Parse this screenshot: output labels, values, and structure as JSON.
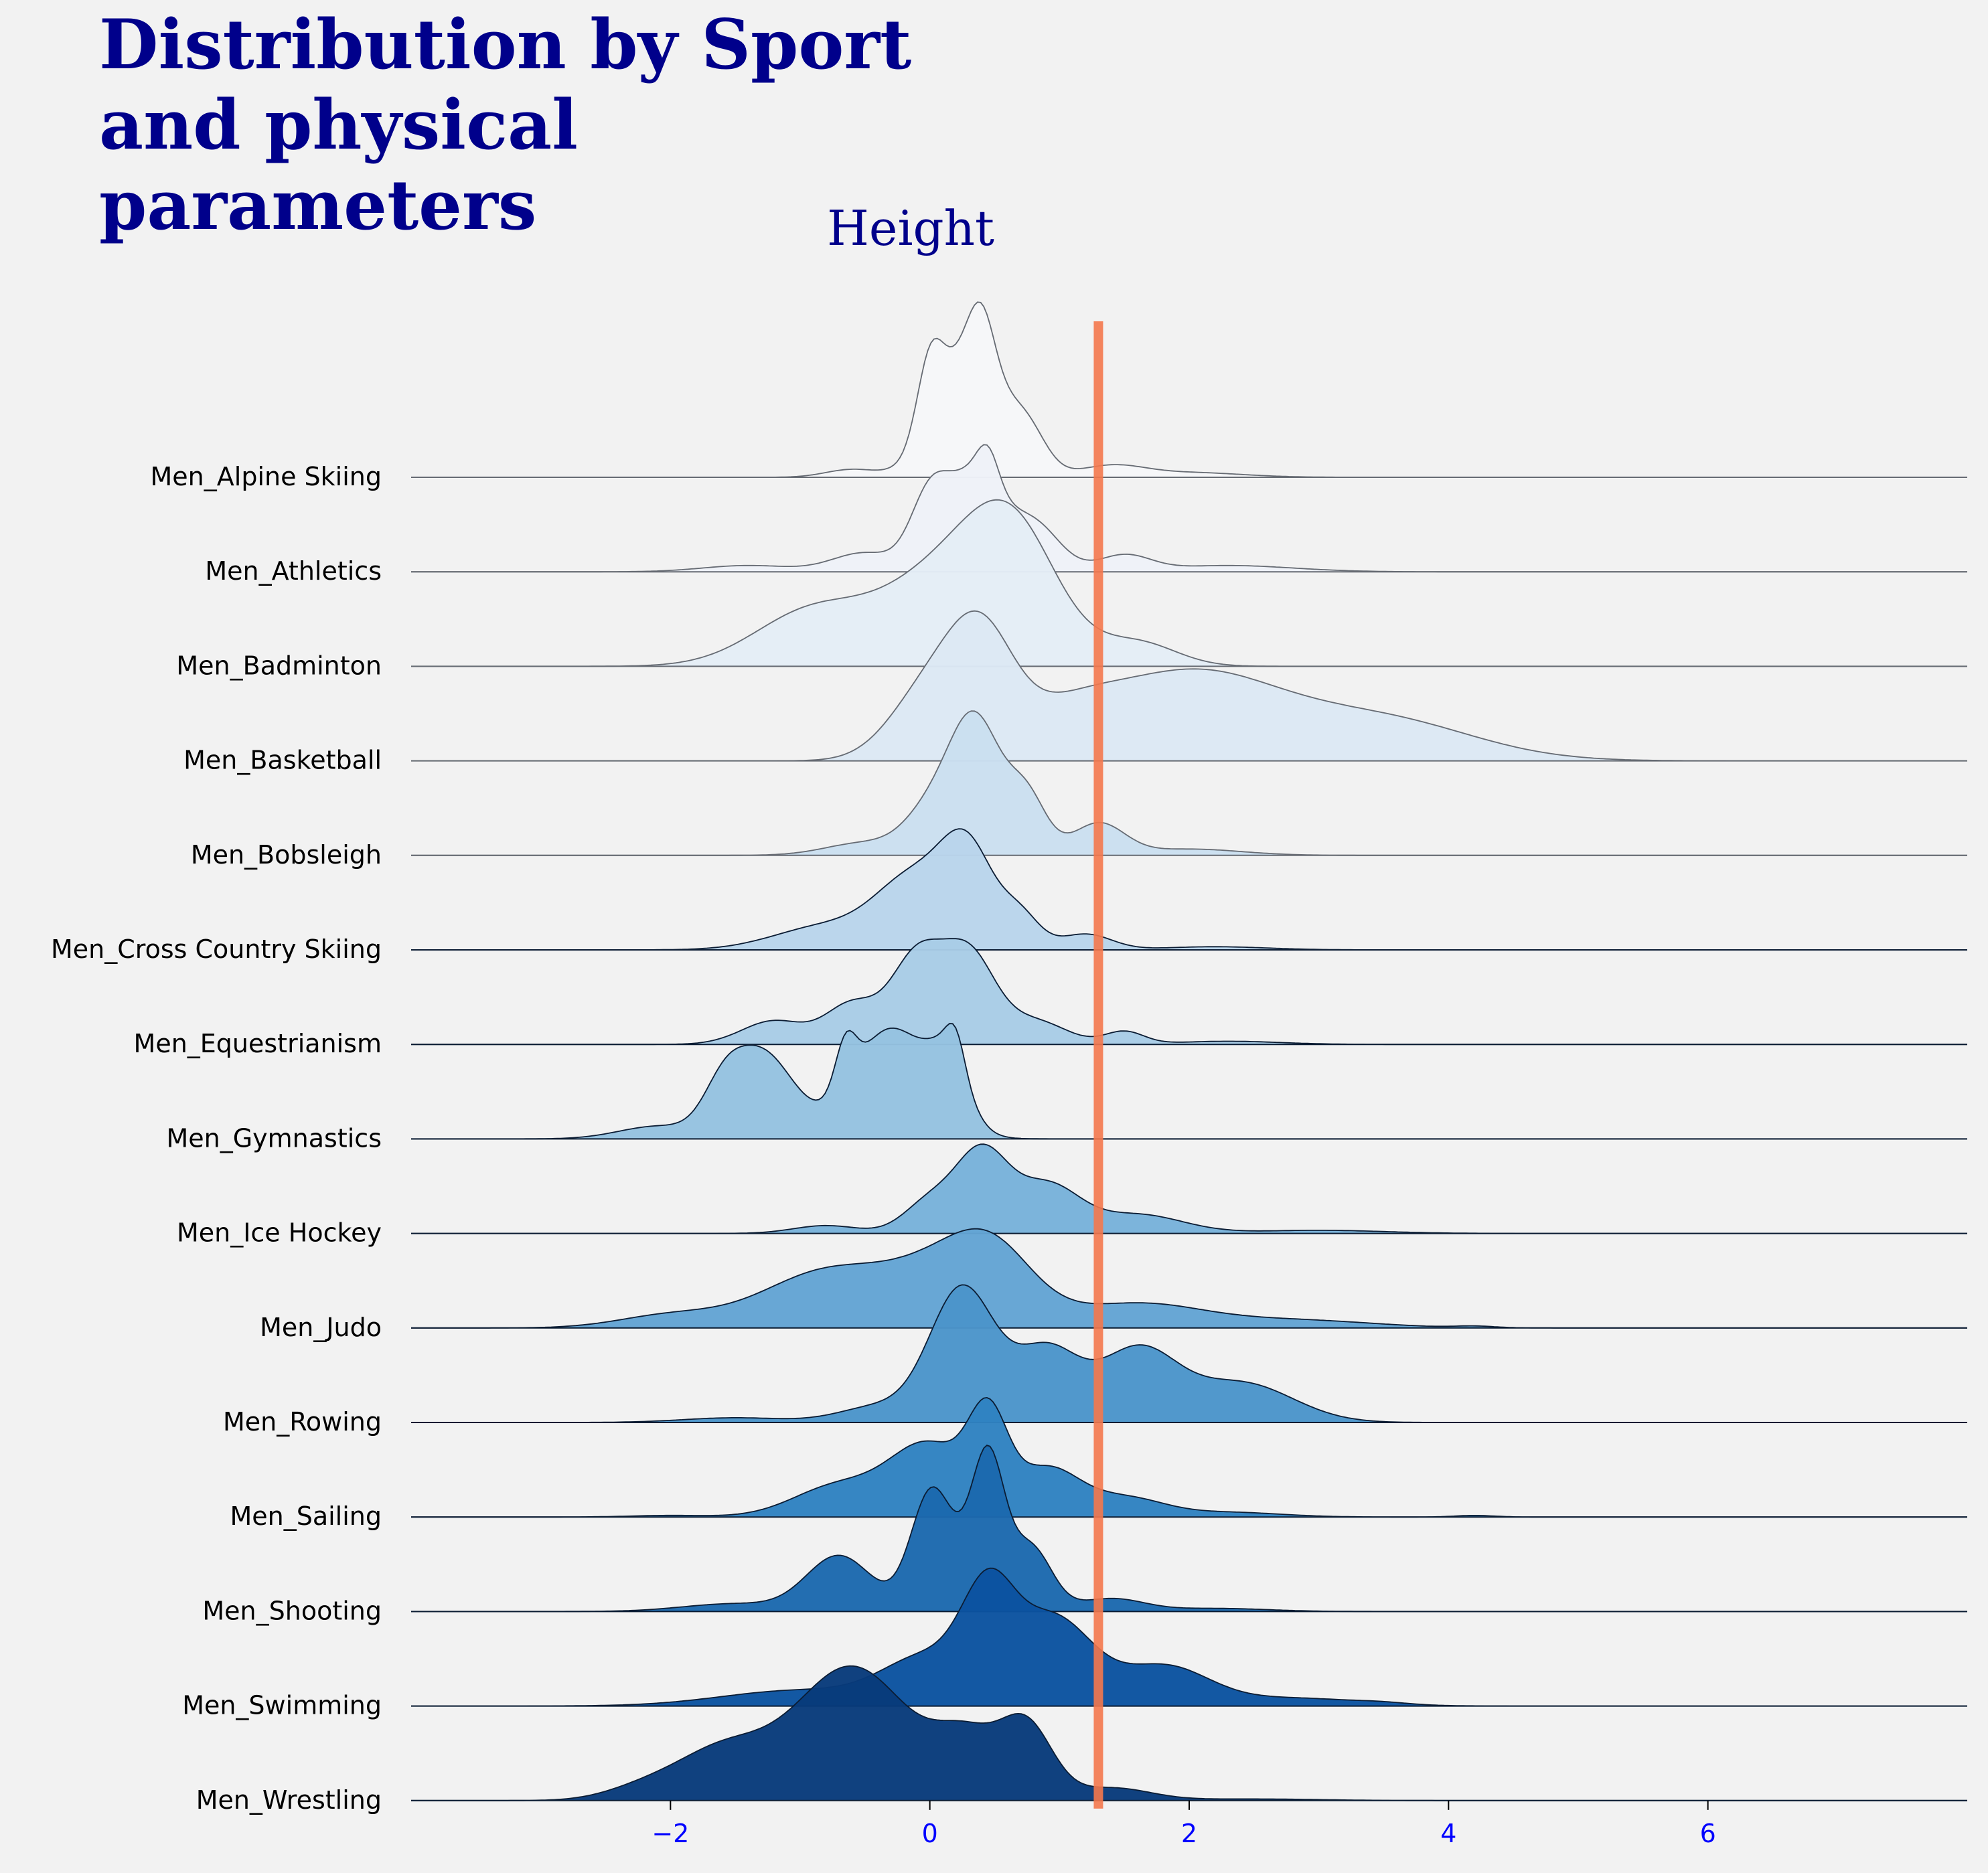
{
  "chart_data": {
    "type": "ridgeline",
    "title_lines": [
      "Distribution by Sport",
      "and physical",
      "parameters"
    ],
    "subtitle": "Height",
    "xlim": [
      -4,
      8
    ],
    "xticks": [
      {
        "value": -2,
        "label": "−2"
      },
      {
        "value": 0,
        "label": "0"
      },
      {
        "value": 2,
        "label": "2"
      },
      {
        "value": 4,
        "label": "4"
      },
      {
        "value": 6,
        "label": "6"
      }
    ],
    "reference_line": {
      "x": 1.3,
      "color": "#f4784d"
    },
    "series": [
      {
        "name": "Men_Alpine Skiing",
        "color": "#f6f7f9",
        "peaks": [
          [
            -0.6,
            0.2,
            0.05
          ],
          [
            0.0,
            0.1,
            0.45
          ],
          [
            0.3,
            0.25,
            0.8
          ],
          [
            0.4,
            0.1,
            0.35
          ],
          [
            0.75,
            0.15,
            0.25
          ],
          [
            1.4,
            0.25,
            0.07
          ],
          [
            2.0,
            0.4,
            0.03
          ]
        ]
      },
      {
        "name": "Men_Athletics",
        "color": "#eef2f8",
        "peaks": [
          [
            -1.4,
            0.35,
            0.04
          ],
          [
            -0.5,
            0.25,
            0.12
          ],
          [
            0.0,
            0.15,
            0.45
          ],
          [
            0.35,
            0.2,
            0.6
          ],
          [
            0.45,
            0.08,
            0.2
          ],
          [
            0.8,
            0.2,
            0.3
          ],
          [
            1.5,
            0.2,
            0.1
          ],
          [
            2.3,
            0.5,
            0.04
          ]
        ]
      },
      {
        "name": "Men_Badminton",
        "color": "#e4edf6",
        "peaks": [
          [
            -0.9,
            0.45,
            0.35
          ],
          [
            0.1,
            0.45,
            0.55
          ],
          [
            0.65,
            0.35,
            0.75
          ],
          [
            1.6,
            0.3,
            0.15
          ]
        ]
      },
      {
        "name": "Men_Basketball",
        "color": "#dce8f4",
        "peaks": [
          [
            0.0,
            0.3,
            0.45
          ],
          [
            0.4,
            0.25,
            0.65
          ],
          [
            1.0,
            0.4,
            0.2
          ],
          [
            2.0,
            0.7,
            0.55
          ],
          [
            3.5,
            0.7,
            0.25
          ]
        ]
      },
      {
        "name": "Men_Bobsleigh",
        "color": "#cadff0",
        "peaks": [
          [
            -0.5,
            0.3,
            0.08
          ],
          [
            0.0,
            0.2,
            0.25
          ],
          [
            0.35,
            0.2,
            0.85
          ],
          [
            0.75,
            0.15,
            0.35
          ],
          [
            1.3,
            0.2,
            0.2
          ],
          [
            2.0,
            0.4,
            0.04
          ]
        ]
      },
      {
        "name": "Men_Cross Country Skiing",
        "color": "#b9d5eb",
        "peaks": [
          [
            -0.8,
            0.4,
            0.15
          ],
          [
            -0.1,
            0.3,
            0.45
          ],
          [
            0.3,
            0.2,
            0.55
          ],
          [
            0.7,
            0.15,
            0.2
          ],
          [
            1.2,
            0.2,
            0.1
          ],
          [
            2.2,
            0.4,
            0.02
          ]
        ]
      },
      {
        "name": "Men_Equestrianism",
        "color": "#a8cce6",
        "peaks": [
          [
            -1.2,
            0.25,
            0.15
          ],
          [
            -0.6,
            0.2,
            0.25
          ],
          [
            -0.1,
            0.2,
            0.55
          ],
          [
            0.3,
            0.2,
            0.55
          ],
          [
            0.8,
            0.25,
            0.15
          ],
          [
            1.5,
            0.15,
            0.08
          ],
          [
            2.3,
            0.4,
            0.02
          ]
        ]
      },
      {
        "name": "Men_Gymnastics",
        "color": "#95c2e0",
        "peaks": [
          [
            -2.1,
            0.3,
            0.08
          ],
          [
            -1.6,
            0.15,
            0.2
          ],
          [
            -1.3,
            0.25,
            0.55
          ],
          [
            -0.65,
            0.08,
            0.3
          ],
          [
            -0.3,
            0.3,
            0.7
          ],
          [
            0.2,
            0.07,
            0.2
          ],
          [
            0.15,
            0.15,
            0.35
          ]
        ]
      },
      {
        "name": "Men_Ice Hockey",
        "color": "#78b2da",
        "peaks": [
          [
            -0.8,
            0.25,
            0.05
          ],
          [
            0.0,
            0.2,
            0.2
          ],
          [
            0.4,
            0.2,
            0.5
          ],
          [
            0.9,
            0.25,
            0.3
          ],
          [
            1.6,
            0.35,
            0.12
          ],
          [
            3.0,
            0.5,
            0.02
          ]
        ]
      },
      {
        "name": "Men_Judo",
        "color": "#63a4d4",
        "peaks": [
          [
            -2.0,
            0.4,
            0.08
          ],
          [
            -0.8,
            0.5,
            0.35
          ],
          [
            0.2,
            0.45,
            0.4
          ],
          [
            0.5,
            0.3,
            0.25
          ],
          [
            1.6,
            0.5,
            0.15
          ],
          [
            2.8,
            0.6,
            0.05
          ],
          [
            4.2,
            0.15,
            0.01
          ]
        ]
      },
      {
        "name": "Men_Rowing",
        "color": "#4b95ca",
        "peaks": [
          [
            -1.5,
            0.4,
            0.03
          ],
          [
            -0.4,
            0.3,
            0.1
          ],
          [
            0.25,
            0.25,
            0.85
          ],
          [
            0.9,
            0.25,
            0.45
          ],
          [
            1.6,
            0.3,
            0.45
          ],
          [
            2.4,
            0.4,
            0.25
          ]
        ]
      },
      {
        "name": "Men_Sailing",
        "color": "#2f82c1",
        "peaks": [
          [
            -2.0,
            0.3,
            0.01
          ],
          [
            -0.7,
            0.35,
            0.2
          ],
          [
            0.0,
            0.3,
            0.45
          ],
          [
            0.45,
            0.15,
            0.55
          ],
          [
            0.9,
            0.25,
            0.3
          ],
          [
            1.5,
            0.3,
            0.12
          ],
          [
            2.3,
            0.4,
            0.03
          ],
          [
            4.2,
            0.15,
            0.01
          ]
        ]
      },
      {
        "name": "Men_Shooting",
        "color": "#1c69ae",
        "peaks": [
          [
            -1.5,
            0.4,
            0.05
          ],
          [
            -0.7,
            0.25,
            0.35
          ],
          [
            0.0,
            0.15,
            0.6
          ],
          [
            0.45,
            0.12,
            0.7
          ],
          [
            0.35,
            0.3,
            0.35
          ],
          [
            0.8,
            0.15,
            0.3
          ],
          [
            1.4,
            0.25,
            0.08
          ],
          [
            2.2,
            0.4,
            0.02
          ]
        ]
      },
      {
        "name": "Men_Swimming",
        "color": "#0b53a0",
        "peaks": [
          [
            -1.0,
            0.6,
            0.1
          ],
          [
            0.0,
            0.35,
            0.3
          ],
          [
            0.45,
            0.2,
            0.6
          ],
          [
            0.95,
            0.3,
            0.55
          ],
          [
            1.8,
            0.35,
            0.25
          ],
          [
            2.8,
            0.5,
            0.05
          ],
          [
            3.5,
            0.2,
            0.01
          ]
        ]
      },
      {
        "name": "Men_Wrestling",
        "color": "#083b7b",
        "peaks": [
          [
            -2.2,
            0.3,
            0.08
          ],
          [
            -1.6,
            0.35,
            0.3
          ],
          [
            -0.6,
            0.45,
            0.85
          ],
          [
            0.3,
            0.25,
            0.35
          ],
          [
            0.75,
            0.2,
            0.45
          ],
          [
            1.4,
            0.3,
            0.08
          ],
          [
            2.5,
            0.5,
            0.01
          ]
        ]
      }
    ]
  }
}
